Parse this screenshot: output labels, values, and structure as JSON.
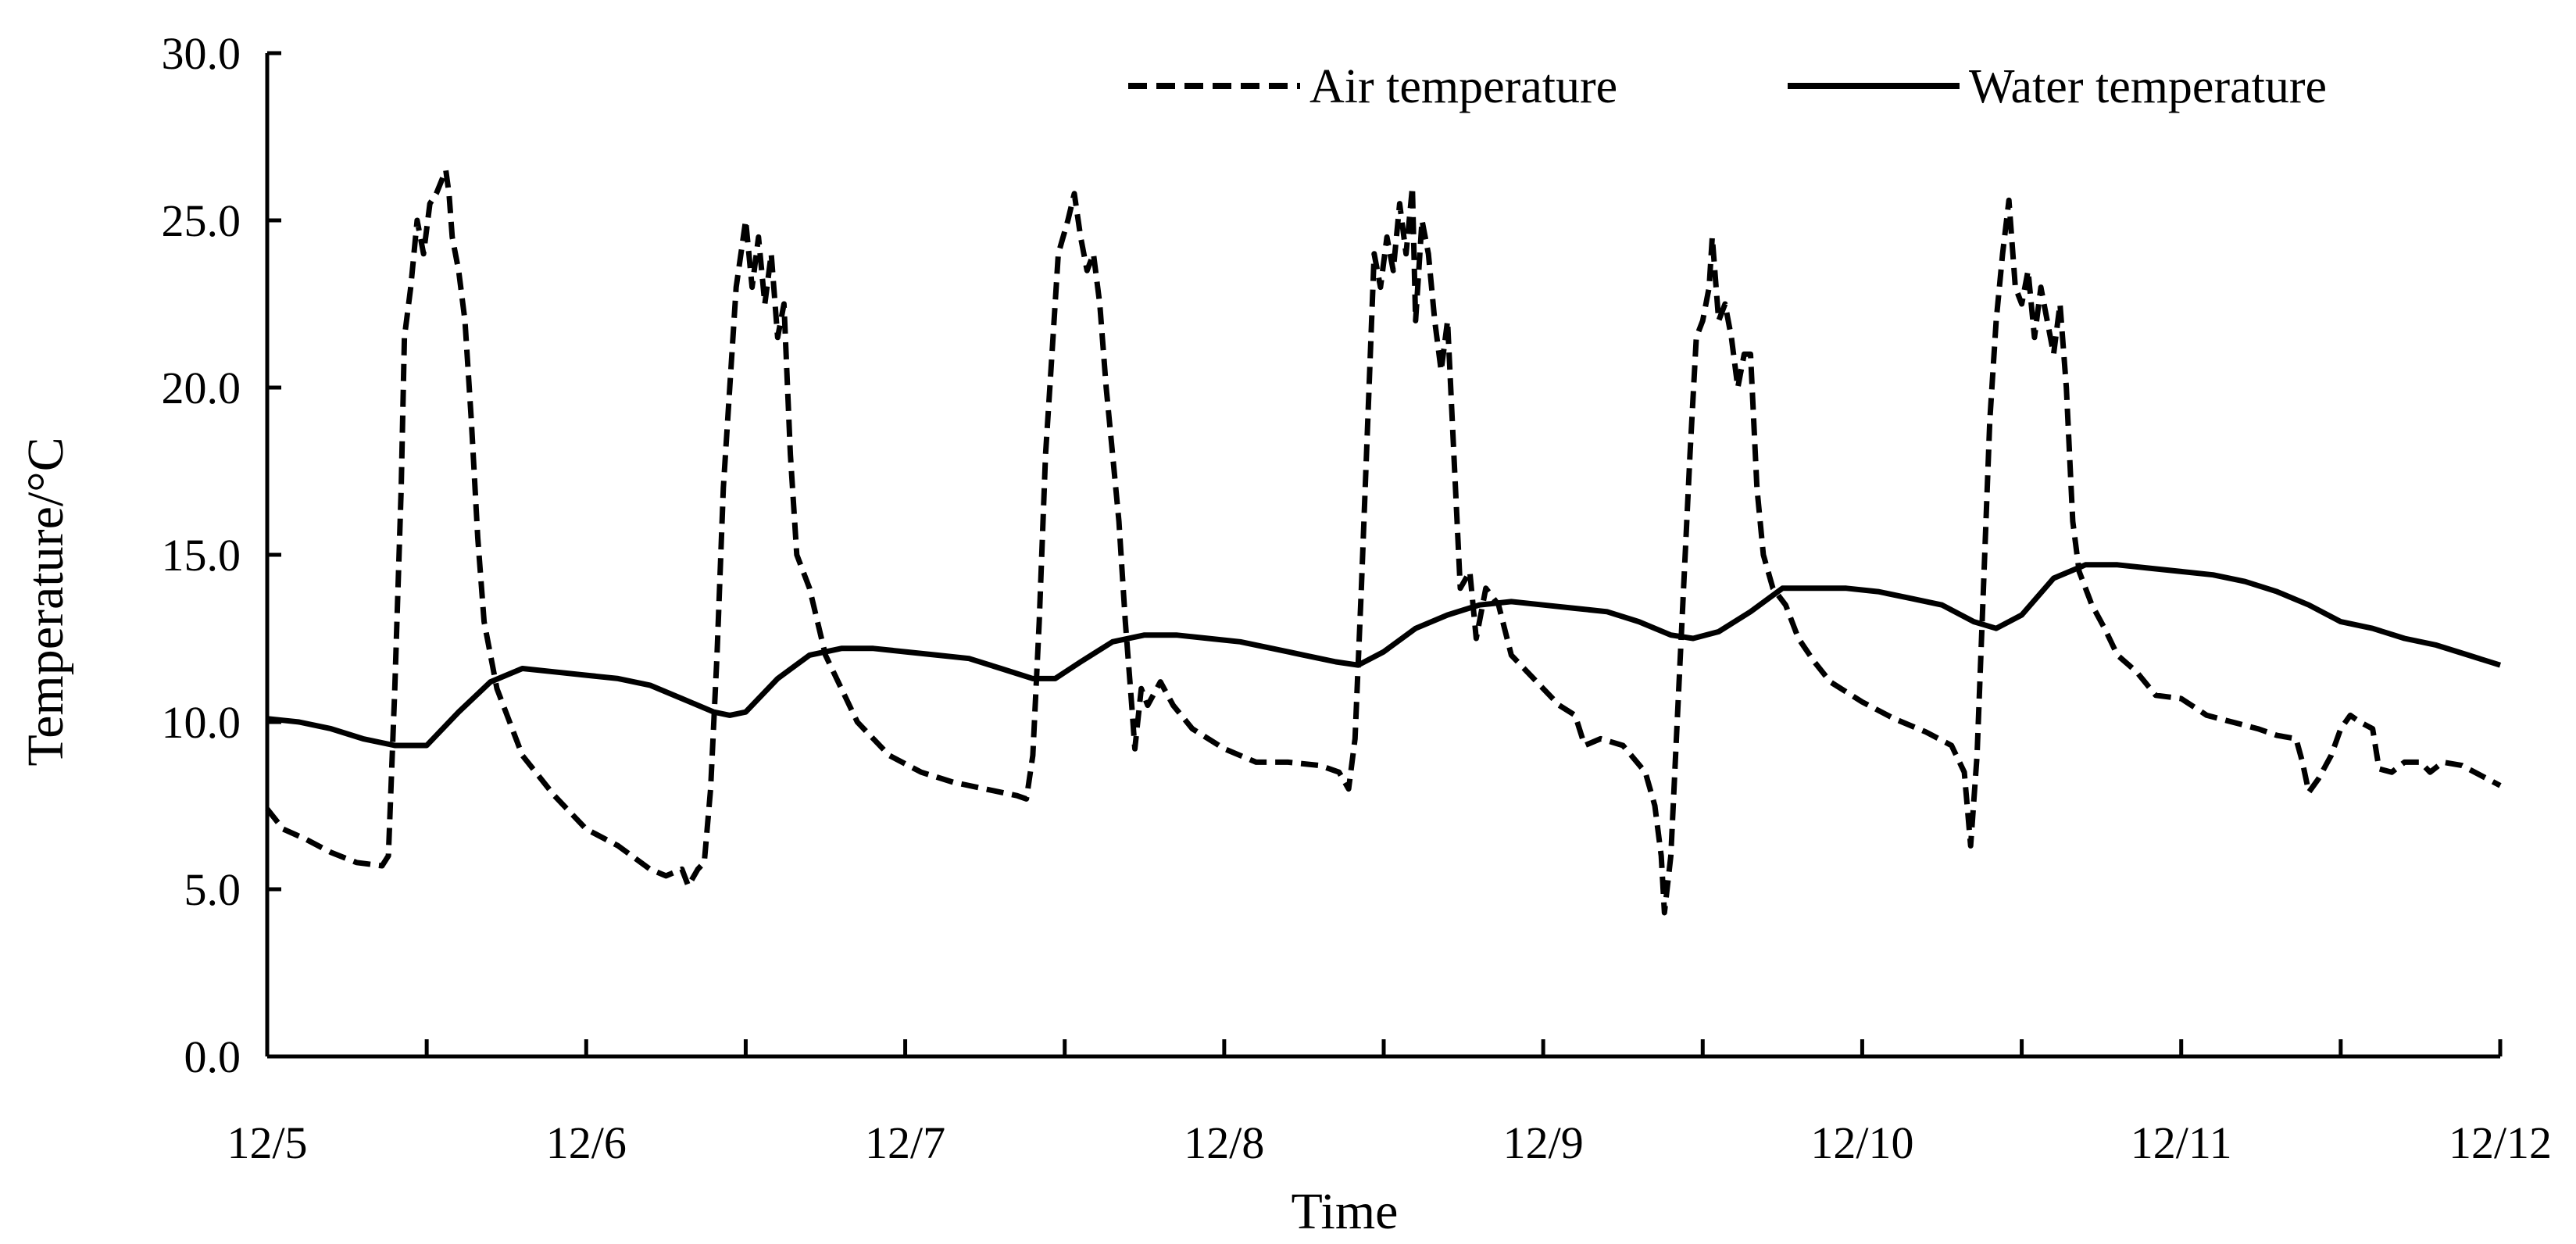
{
  "chart_data": {
    "type": "line",
    "title": "",
    "xlabel": "Time",
    "ylabel": "Temperature/°C",
    "ylim": [
      0,
      30
    ],
    "xlim": [
      0,
      7
    ],
    "yticks": [
      "0.0",
      "5.0",
      "10.0",
      "15.0",
      "20.0",
      "25.0",
      "30.0"
    ],
    "xticks": [
      "12/5",
      "12/6",
      "12/7",
      "12/8",
      "12/9",
      "12/10",
      "12/11",
      "12/12"
    ],
    "legend_position": "top-right",
    "x_unit": "days since 12/5 00:00",
    "series": [
      {
        "name": "Air temperature",
        "style": "dashed",
        "color": "#000000",
        "points": [
          [
            0.0,
            7.4
          ],
          [
            0.05,
            6.8
          ],
          [
            0.12,
            6.5
          ],
          [
            0.2,
            6.1
          ],
          [
            0.28,
            5.8
          ],
          [
            0.36,
            5.7
          ],
          [
            0.38,
            6.0
          ],
          [
            0.4,
            11.0
          ],
          [
            0.42,
            17.0
          ],
          [
            0.43,
            21.5
          ],
          [
            0.45,
            23.0
          ],
          [
            0.47,
            25.0
          ],
          [
            0.49,
            24.0
          ],
          [
            0.51,
            25.5
          ],
          [
            0.53,
            25.8
          ],
          [
            0.56,
            26.5
          ],
          [
            0.57,
            25.8
          ],
          [
            0.58,
            24.5
          ],
          [
            0.6,
            23.5
          ],
          [
            0.62,
            22.0
          ],
          [
            0.64,
            19.0
          ],
          [
            0.66,
            15.5
          ],
          [
            0.68,
            13.0
          ],
          [
            0.72,
            11.0
          ],
          [
            0.8,
            9.0
          ],
          [
            0.9,
            7.8
          ],
          [
            1.0,
            6.8
          ],
          [
            1.1,
            6.3
          ],
          [
            1.2,
            5.6
          ],
          [
            1.25,
            5.4
          ],
          [
            1.3,
            5.6
          ],
          [
            1.32,
            5.1
          ],
          [
            1.35,
            5.6
          ],
          [
            1.37,
            5.8
          ],
          [
            1.39,
            8.0
          ],
          [
            1.41,
            12.0
          ],
          [
            1.43,
            17.0
          ],
          [
            1.45,
            20.0
          ],
          [
            1.47,
            23.0
          ],
          [
            1.5,
            25.0
          ],
          [
            1.52,
            23.0
          ],
          [
            1.54,
            24.5
          ],
          [
            1.56,
            22.5
          ],
          [
            1.58,
            24.0
          ],
          [
            1.6,
            21.5
          ],
          [
            1.62,
            22.5
          ],
          [
            1.64,
            18.0
          ],
          [
            1.66,
            15.0
          ],
          [
            1.7,
            14.0
          ],
          [
            1.75,
            12.0
          ],
          [
            1.85,
            10.0
          ],
          [
            1.95,
            9.0
          ],
          [
            2.05,
            8.5
          ],
          [
            2.15,
            8.2
          ],
          [
            2.25,
            8.0
          ],
          [
            2.35,
            7.8
          ],
          [
            2.38,
            7.7
          ],
          [
            2.4,
            9.0
          ],
          [
            2.42,
            13.0
          ],
          [
            2.44,
            18.0
          ],
          [
            2.46,
            21.0
          ],
          [
            2.48,
            24.0
          ],
          [
            2.51,
            25.0
          ],
          [
            2.53,
            25.8
          ],
          [
            2.55,
            24.5
          ],
          [
            2.57,
            23.5
          ],
          [
            2.59,
            24.0
          ],
          [
            2.61,
            22.5
          ],
          [
            2.63,
            20.0
          ],
          [
            2.65,
            18.0
          ],
          [
            2.67,
            16.0
          ],
          [
            2.69,
            13.0
          ],
          [
            2.71,
            10.5
          ],
          [
            2.72,
            9.2
          ],
          [
            2.74,
            11.0
          ],
          [
            2.76,
            10.5
          ],
          [
            2.8,
            11.2
          ],
          [
            2.84,
            10.5
          ],
          [
            2.9,
            9.8
          ],
          [
            3.0,
            9.2
          ],
          [
            3.1,
            8.8
          ],
          [
            3.2,
            8.8
          ],
          [
            3.3,
            8.7
          ],
          [
            3.36,
            8.5
          ],
          [
            3.39,
            8.0
          ],
          [
            3.41,
            9.5
          ],
          [
            3.43,
            14.0
          ],
          [
            3.45,
            19.0
          ],
          [
            3.47,
            24.0
          ],
          [
            3.49,
            23.0
          ],
          [
            3.51,
            24.5
          ],
          [
            3.53,
            23.5
          ],
          [
            3.55,
            25.5
          ],
          [
            3.57,
            24.0
          ],
          [
            3.59,
            26.0
          ],
          [
            3.6,
            22.0
          ],
          [
            3.62,
            25.0
          ],
          [
            3.64,
            24.0
          ],
          [
            3.66,
            22.0
          ],
          [
            3.68,
            20.5
          ],
          [
            3.7,
            22.0
          ],
          [
            3.72,
            18.0
          ],
          [
            3.74,
            14.0
          ],
          [
            3.77,
            14.5
          ],
          [
            3.79,
            12.5
          ],
          [
            3.82,
            14.0
          ],
          [
            3.86,
            13.5
          ],
          [
            3.9,
            12.0
          ],
          [
            3.95,
            11.5
          ],
          [
            4.0,
            11.0
          ],
          [
            4.05,
            10.5
          ],
          [
            4.1,
            10.2
          ],
          [
            4.13,
            9.3
          ],
          [
            4.18,
            9.5
          ],
          [
            4.25,
            9.3
          ],
          [
            4.32,
            8.5
          ],
          [
            4.35,
            7.5
          ],
          [
            4.37,
            6.0
          ],
          [
            4.38,
            4.3
          ],
          [
            4.4,
            6.0
          ],
          [
            4.42,
            10.0
          ],
          [
            4.44,
            14.0
          ],
          [
            4.46,
            18.0
          ],
          [
            4.48,
            21.5
          ],
          [
            4.5,
            22.0
          ],
          [
            4.52,
            23.0
          ],
          [
            4.53,
            24.5
          ],
          [
            4.55,
            22.0
          ],
          [
            4.57,
            22.5
          ],
          [
            4.59,
            21.5
          ],
          [
            4.61,
            20.0
          ],
          [
            4.63,
            21.0
          ],
          [
            4.65,
            21.0
          ],
          [
            4.67,
            17.0
          ],
          [
            4.69,
            15.0
          ],
          [
            4.72,
            14.0
          ],
          [
            4.76,
            13.5
          ],
          [
            4.8,
            12.5
          ],
          [
            4.85,
            11.8
          ],
          [
            4.9,
            11.2
          ],
          [
            5.0,
            10.6
          ],
          [
            5.1,
            10.1
          ],
          [
            5.2,
            9.7
          ],
          [
            5.28,
            9.3
          ],
          [
            5.32,
            8.5
          ],
          [
            5.34,
            6.3
          ],
          [
            5.36,
            9.0
          ],
          [
            5.38,
            14.0
          ],
          [
            5.4,
            19.0
          ],
          [
            5.42,
            22.0
          ],
          [
            5.44,
            24.0
          ],
          [
            5.46,
            25.6
          ],
          [
            5.48,
            23.0
          ],
          [
            5.5,
            22.5
          ],
          [
            5.52,
            23.5
          ],
          [
            5.54,
            21.5
          ],
          [
            5.56,
            23.0
          ],
          [
            5.58,
            22.0
          ],
          [
            5.6,
            21.0
          ],
          [
            5.62,
            22.5
          ],
          [
            5.64,
            20.0
          ],
          [
            5.66,
            16.0
          ],
          [
            5.68,
            14.5
          ],
          [
            5.72,
            13.5
          ],
          [
            5.76,
            12.8
          ],
          [
            5.8,
            12.0
          ],
          [
            5.86,
            11.5
          ],
          [
            5.92,
            10.8
          ],
          [
            6.0,
            10.7
          ],
          [
            6.08,
            10.2
          ],
          [
            6.16,
            10.0
          ],
          [
            6.24,
            9.8
          ],
          [
            6.3,
            9.6
          ],
          [
            6.36,
            9.5
          ],
          [
            6.38,
            8.8
          ],
          [
            6.4,
            7.9
          ],
          [
            6.43,
            8.3
          ],
          [
            6.47,
            9.0
          ],
          [
            6.5,
            9.8
          ],
          [
            6.53,
            10.2
          ],
          [
            6.56,
            10.0
          ],
          [
            6.6,
            9.8
          ],
          [
            6.62,
            8.6
          ],
          [
            6.66,
            8.5
          ],
          [
            6.7,
            8.8
          ],
          [
            6.75,
            8.8
          ],
          [
            6.78,
            8.5
          ],
          [
            6.82,
            8.8
          ],
          [
            6.88,
            8.7
          ],
          [
            6.94,
            8.4
          ],
          [
            7.0,
            8.1
          ]
        ]
      },
      {
        "name": "Water temperature",
        "style": "solid",
        "color": "#000000",
        "points": [
          [
            0.0,
            10.1
          ],
          [
            0.1,
            10.0
          ],
          [
            0.2,
            9.8
          ],
          [
            0.3,
            9.5
          ],
          [
            0.4,
            9.3
          ],
          [
            0.5,
            9.3
          ],
          [
            0.6,
            10.3
          ],
          [
            0.7,
            11.2
          ],
          [
            0.8,
            11.6
          ],
          [
            0.9,
            11.5
          ],
          [
            1.0,
            11.4
          ],
          [
            1.1,
            11.3
          ],
          [
            1.2,
            11.1
          ],
          [
            1.3,
            10.7
          ],
          [
            1.4,
            10.3
          ],
          [
            1.45,
            10.2
          ],
          [
            1.5,
            10.3
          ],
          [
            1.6,
            11.3
          ],
          [
            1.7,
            12.0
          ],
          [
            1.8,
            12.2
          ],
          [
            1.9,
            12.2
          ],
          [
            2.0,
            12.1
          ],
          [
            2.1,
            12.0
          ],
          [
            2.2,
            11.9
          ],
          [
            2.3,
            11.6
          ],
          [
            2.4,
            11.3
          ],
          [
            2.47,
            11.3
          ],
          [
            2.55,
            11.8
          ],
          [
            2.65,
            12.4
          ],
          [
            2.75,
            12.6
          ],
          [
            2.85,
            12.6
          ],
          [
            2.95,
            12.5
          ],
          [
            3.05,
            12.4
          ],
          [
            3.15,
            12.2
          ],
          [
            3.25,
            12.0
          ],
          [
            3.35,
            11.8
          ],
          [
            3.42,
            11.7
          ],
          [
            3.5,
            12.1
          ],
          [
            3.6,
            12.8
          ],
          [
            3.7,
            13.2
          ],
          [
            3.8,
            13.5
          ],
          [
            3.9,
            13.6
          ],
          [
            4.0,
            13.5
          ],
          [
            4.1,
            13.4
          ],
          [
            4.2,
            13.3
          ],
          [
            4.3,
            13.0
          ],
          [
            4.4,
            12.6
          ],
          [
            4.47,
            12.5
          ],
          [
            4.55,
            12.7
          ],
          [
            4.65,
            13.3
          ],
          [
            4.75,
            14.0
          ],
          [
            4.85,
            14.0
          ],
          [
            4.95,
            14.0
          ],
          [
            5.05,
            13.9
          ],
          [
            5.15,
            13.7
          ],
          [
            5.25,
            13.5
          ],
          [
            5.35,
            13.0
          ],
          [
            5.42,
            12.8
          ],
          [
            5.5,
            13.2
          ],
          [
            5.6,
            14.3
          ],
          [
            5.7,
            14.7
          ],
          [
            5.8,
            14.7
          ],
          [
            5.9,
            14.6
          ],
          [
            6.0,
            14.5
          ],
          [
            6.1,
            14.4
          ],
          [
            6.2,
            14.2
          ],
          [
            6.3,
            13.9
          ],
          [
            6.4,
            13.5
          ],
          [
            6.5,
            13.0
          ],
          [
            6.6,
            12.8
          ],
          [
            6.7,
            12.5
          ],
          [
            6.8,
            12.3
          ],
          [
            6.9,
            12.0
          ],
          [
            7.0,
            11.7
          ]
        ]
      }
    ]
  }
}
